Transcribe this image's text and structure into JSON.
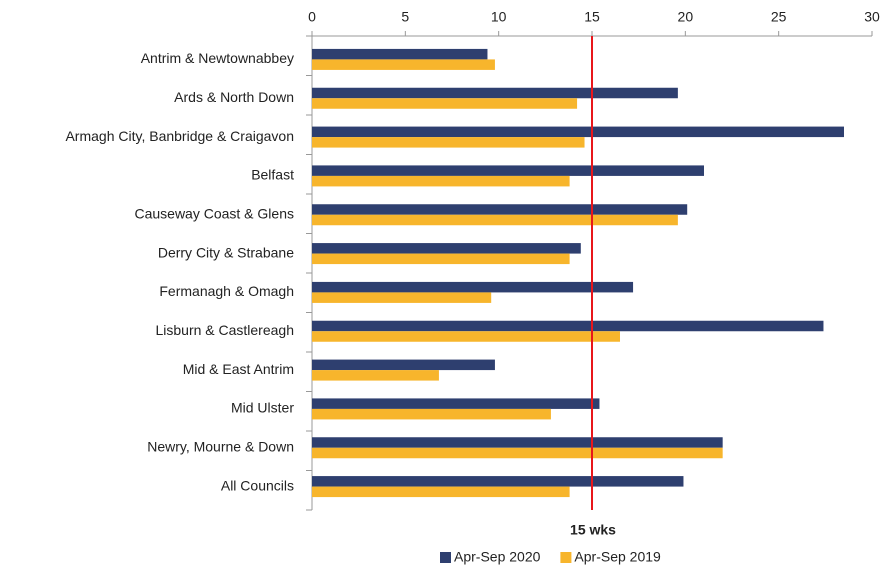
{
  "chart_data": {
    "type": "hbar",
    "categories": [
      "Antrim & Newtownabbey",
      "Ards & North Down",
      "Armagh City, Banbridge & Craigavon",
      "Belfast",
      "Causeway Coast & Glens",
      "Derry City & Strabane",
      "Fermanagh & Omagh",
      "Lisburn & Castlereagh",
      "Mid & East Antrim",
      "Mid Ulster",
      "Newry, Mourne & Down",
      "All Councils"
    ],
    "series": [
      {
        "name": "Apr-Sep 2020",
        "color": "#2e3f6f",
        "values": [
          9.4,
          19.6,
          28.5,
          21.0,
          20.1,
          14.4,
          17.2,
          27.4,
          9.8,
          15.4,
          22.0,
          19.9
        ]
      },
      {
        "name": "Apr-Sep 2019",
        "color": "#f7b52c",
        "values": [
          9.8,
          14.2,
          14.6,
          13.8,
          19.6,
          13.8,
          9.6,
          16.5,
          6.8,
          12.8,
          22.0,
          13.8
        ]
      }
    ],
    "xlim": [
      0,
      30
    ],
    "xticks": [
      0,
      5,
      10,
      15,
      20,
      25,
      30
    ],
    "reference_line": {
      "value": 15,
      "label": "15 wks",
      "color": "#e8161b"
    },
    "legend": "bottom"
  }
}
